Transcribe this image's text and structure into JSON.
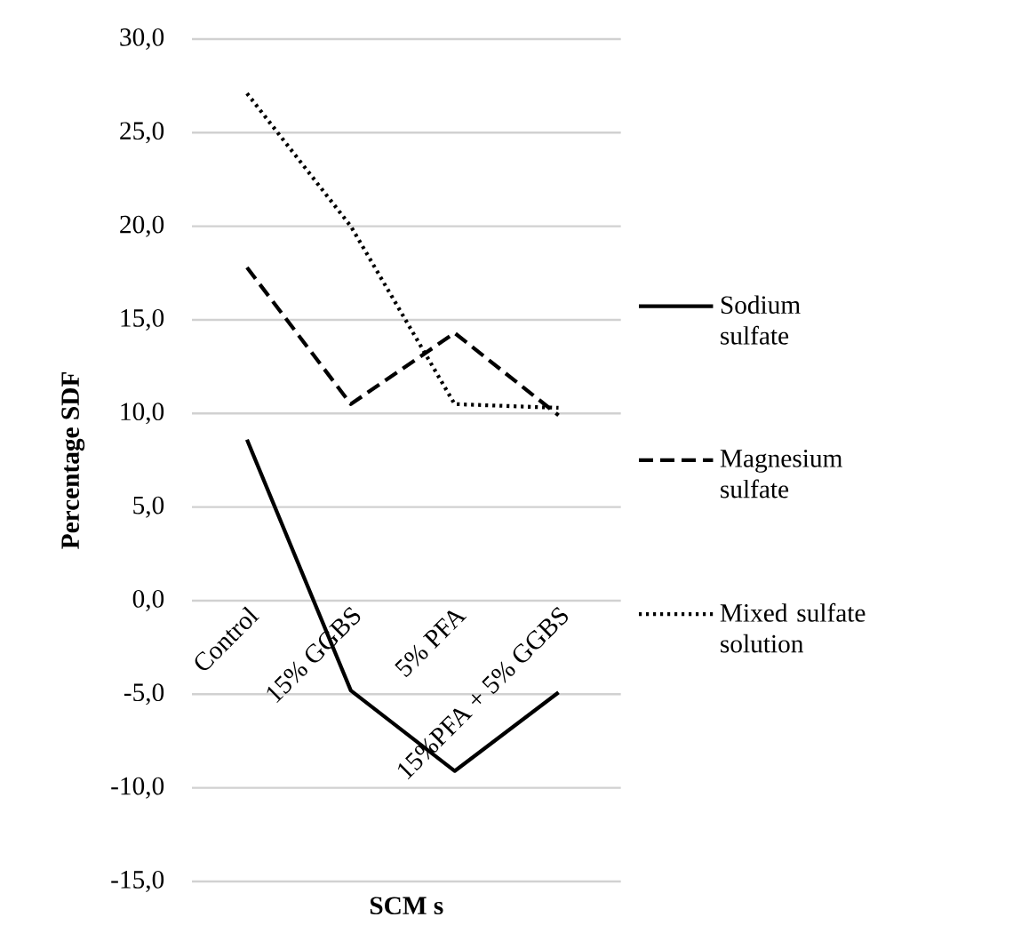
{
  "chart_data": {
    "type": "line",
    "xlabel": "SCM s",
    "ylabel": "Percentage SDF",
    "categories": [
      "Control",
      "15% GGBS",
      "5% PFA",
      "15%PFA + 5% GGBS"
    ],
    "series": [
      {
        "name": "Sodium sulfate",
        "color": "#000000",
        "line_style": "solid",
        "values": [
          8.6,
          -4.8,
          -9.1,
          -4.9
        ]
      },
      {
        "name": "Magnesium sulfate",
        "color": "#000000",
        "line_style": "dashed",
        "values": [
          17.8,
          10.5,
          14.3,
          9.9
        ]
      },
      {
        "name": "Mixed sulfate solution",
        "color": "#000000",
        "line_style": "dotted",
        "values": [
          27.1,
          20.0,
          10.5,
          10.3
        ]
      }
    ],
    "ylim": [
      -15,
      30
    ],
    "yticks": [
      {
        "value": -15,
        "label": "-15,0"
      },
      {
        "value": -10,
        "label": "-10,0"
      },
      {
        "value": -5,
        "label": "-5,0"
      },
      {
        "value": 0,
        "label": "0,0"
      },
      {
        "value": 5,
        "label": "5,0"
      },
      {
        "value": 10,
        "label": "10,0"
      },
      {
        "value": 15,
        "label": "15,0"
      },
      {
        "value": 20,
        "label": "20,0"
      },
      {
        "value": 25,
        "label": "25,0"
      },
      {
        "value": 30,
        "label": "30,0"
      }
    ],
    "grid": "y",
    "legend": "right",
    "marker": "none"
  }
}
